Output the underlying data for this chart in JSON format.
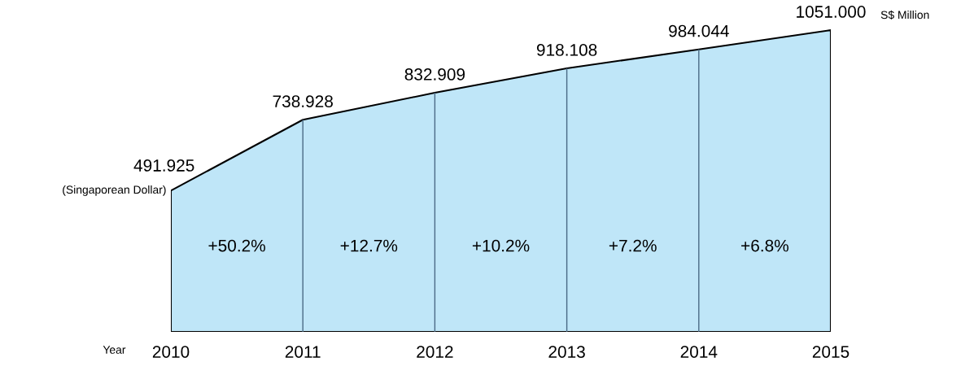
{
  "chart_data": {
    "type": "area",
    "categories": [
      "2010",
      "2011",
      "2012",
      "2013",
      "2014",
      "2015"
    ],
    "values": [
      491.925,
      738.928,
      832.909,
      918.108,
      984.044,
      1051.0
    ],
    "value_labels": [
      "491.925",
      "738.928",
      "832.909",
      "918.108",
      "984.044",
      "1051.000"
    ],
    "color": "#bfe6f8",
    "xlabel": "Year",
    "ylabel": "(Singaporean Dollar)",
    "annotations": [
      "+50.2%",
      "+12.7%",
      "+10.2%",
      "+7.2%",
      "+6.8%",
      "S$ Million"
    ],
    "grid": "x",
    "legend": false
  }
}
